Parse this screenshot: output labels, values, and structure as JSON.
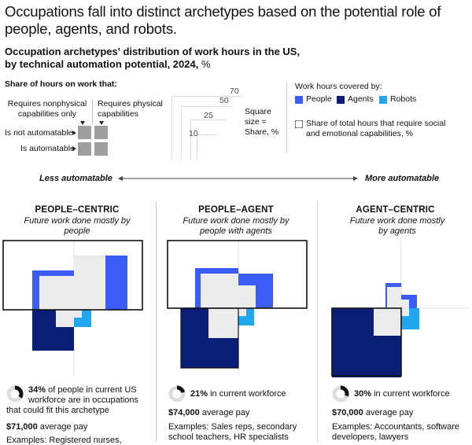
{
  "title": "Occupations fall into distinct archetypes based on the potential role of people, agents, and robots.",
  "subtitle": {
    "line1": "Occupation archetypes' distribution of work hours in the US,",
    "line2_prefix": "by technical automation potential, 2024,",
    "line2_unit": " %"
  },
  "key": {
    "heading": "Share of hours on work that:",
    "col_nonphysical": "Requires nonphysical capabilities only",
    "col_physical": "Requires physical capabilities",
    "row_not_auto": "Is not automatable",
    "row_auto": "Is automatable",
    "size_values": [
      "70",
      "50",
      "25",
      "10"
    ],
    "size_label": "Square size = Share, %",
    "covered_heading": "Work hours covered by:",
    "people": "People",
    "agents": "Agents",
    "robots": "Robots",
    "social_note": "Share of total hours that require social and emotional capabilities, %"
  },
  "axis": {
    "left": "Less automatable",
    "right": "More automatable"
  },
  "colors": {
    "people": "#3b5cf6",
    "agents": "#0a1e78",
    "robots": "#22a7ef",
    "social_fill": "#ececec",
    "neutral_square": "#9e9e9e"
  },
  "chart_data": {
    "type": "square-area-matrix",
    "quadrants": [
      "nonphysical-not-automatable",
      "physical-not-automatable",
      "nonphysical-automatable",
      "physical-automatable"
    ],
    "series_colors": [
      "people",
      "agents",
      "robots"
    ],
    "archetypes": [
      {
        "name": "PEOPLE–CENTRIC",
        "sub": "Future work done mostly by people",
        "pct_line": "34%",
        "pct_rest_a": " of people in current US",
        "pct_rest_b": "workforce are in occupations",
        "pct_rest_c": "that could fit this archetype",
        "pay": "$71,000",
        "pay_rest": " average pay",
        "examples": "Examples: Registered nurses,",
        "share": 0.34
      },
      {
        "name": "PEOPLE–AGENT",
        "sub": "Future work done mostly by people with agents",
        "pct_line": "21%",
        "pct_rest_a": " in current workforce",
        "pay": "$74,000",
        "pay_rest": " average pay",
        "examples": "Examples: Sales reps, secondary school teachers, HR specialists",
        "share": 0.21
      },
      {
        "name": "AGENT–CENTRIC",
        "sub": "Future work done mostly by agents",
        "pct_line": "30%",
        "pct_rest_a": " in current workforce",
        "pay": "$70,000",
        "pay_rest": " average pay",
        "examples": "Examples: Accountants, software developers, lawyers",
        "share": 0.3
      }
    ]
  }
}
